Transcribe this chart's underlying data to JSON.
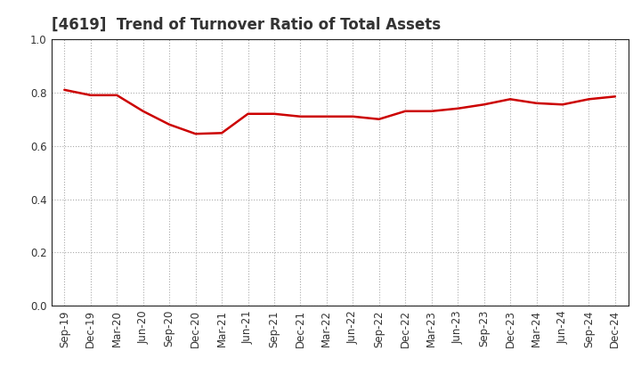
{
  "title": "[4619]  Trend of Turnover Ratio of Total Assets",
  "x_labels": [
    "Sep-19",
    "Dec-19",
    "Mar-20",
    "Jun-20",
    "Sep-20",
    "Dec-20",
    "Mar-21",
    "Jun-21",
    "Sep-21",
    "Dec-21",
    "Mar-22",
    "Jun-22",
    "Sep-22",
    "Dec-22",
    "Mar-23",
    "Jun-23",
    "Sep-23",
    "Dec-23",
    "Mar-24",
    "Jun-24",
    "Sep-24",
    "Dec-24"
  ],
  "y_values": [
    0.81,
    0.79,
    0.79,
    0.73,
    0.68,
    0.645,
    0.648,
    0.72,
    0.72,
    0.71,
    0.71,
    0.71,
    0.7,
    0.73,
    0.73,
    0.74,
    0.755,
    0.775,
    0.76,
    0.755,
    0.775,
    0.785
  ],
  "line_color": "#cc0000",
  "line_width": 1.8,
  "ylim": [
    0.0,
    1.0
  ],
  "yticks": [
    0.0,
    0.2,
    0.4,
    0.6,
    0.8,
    1.0
  ],
  "grid_color": "#aaaaaa",
  "background_color": "#ffffff",
  "title_fontsize": 12,
  "title_color": "#333333",
  "tick_fontsize": 8.5
}
